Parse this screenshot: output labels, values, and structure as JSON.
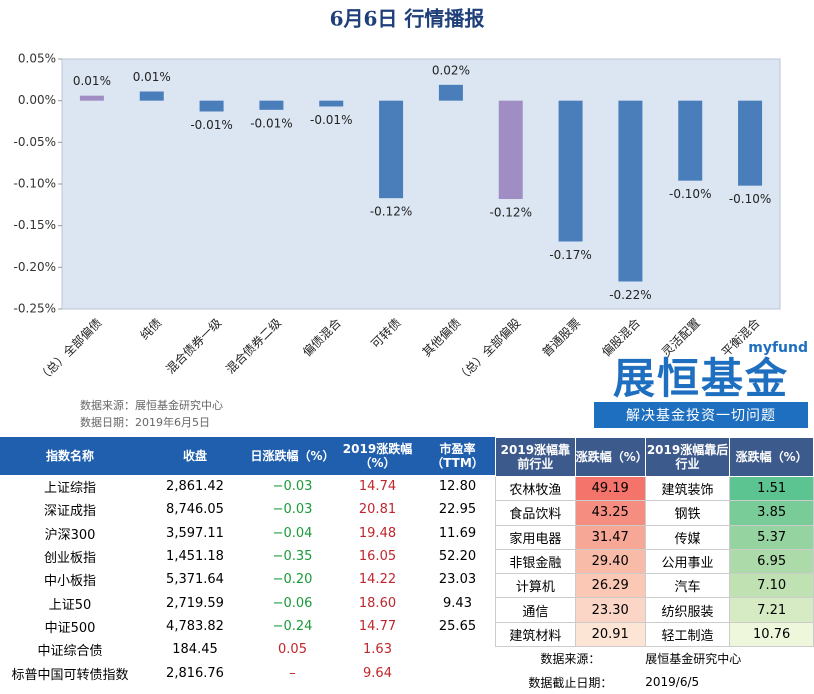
{
  "chart_data": {
    "type": "bar",
    "title": "6月6日  行情播报",
    "categories": [
      "（总）全部偏债",
      "纯债",
      "混合债券一级",
      "混合债券二级",
      "偏债混合",
      "可转债",
      "其他偏债",
      "（总）全部偏股",
      "普通股票",
      "偏股混合",
      "灵活配置",
      "平衡混合"
    ],
    "values": [
      0.006,
      0.011,
      -0.013,
      -0.011,
      -0.007,
      -0.117,
      0.019,
      -0.118,
      -0.169,
      -0.217,
      -0.096,
      -0.102
    ],
    "value_labels": [
      "0.01%",
      "0.01%",
      "-0.01%",
      "-0.01%",
      "-0.01%",
      "-0.12%",
      "0.02%",
      "-0.12%",
      "-0.17%",
      "-0.22%",
      "-0.10%",
      "-0.10%"
    ],
    "colors": [
      "#a08dc4",
      "#4a7ebb",
      "#4a7ebb",
      "#4a7ebb",
      "#4a7ebb",
      "#4a7ebb",
      "#4a7ebb",
      "#a08dc4",
      "#4a7ebb",
      "#4a7ebb",
      "#4a7ebb",
      "#4a7ebb"
    ],
    "ylim": [
      -0.25,
      0.05
    ],
    "yticks": [
      {
        "value": 0.05,
        "label": "0.05%"
      },
      {
        "value": 0,
        "label": "0.00%"
      },
      {
        "value": -0.05,
        "label": "-0.05%"
      },
      {
        "value": -0.1,
        "label": "-0.10%"
      },
      {
        "value": -0.15,
        "label": "-0.15%"
      },
      {
        "value": -0.2,
        "label": "-0.20%"
      },
      {
        "value": -0.25,
        "label": "-0.25%"
      }
    ]
  },
  "source": [
    "数据来源：展恒基金研究中心",
    "数据日期：2019年6月5日"
  ],
  "logo": {
    "brand": "myfund",
    "name": "展恒基金",
    "slogan": "解决基金投资一切问题"
  },
  "table": {
    "header": [
      "指数名称",
      "收盘",
      "日涨跌幅（%）",
      "2019涨跌幅（%）",
      "市盈率（TTM）"
    ],
    "rows": [
      [
        "上证综指",
        "2,861.42",
        "−0.03",
        "14.74",
        "12.80"
      ],
      [
        "深证成指",
        "8,746.05",
        "−0.03",
        "20.81",
        "22.95"
      ],
      [
        "沪深300",
        "3,597.11",
        "−0.04",
        "19.48",
        "11.69"
      ],
      [
        "创业板指",
        "1,451.18",
        "−0.35",
        "16.05",
        "52.20"
      ],
      [
        "中小板指",
        "5,371.64",
        "−0.20",
        "14.22",
        "23.03"
      ],
      [
        "上证50",
        "2,719.59",
        "−0.06",
        "18.60",
        "9.43"
      ],
      [
        "中证500",
        "4,783.82",
        "−0.24",
        "14.77",
        "25.65"
      ],
      [
        "中证综合债",
        "184.45",
        "0.05",
        "1.63"
      ],
      [
        "标普中国可转债指数",
        "2,816.76",
        "–",
        "9.64"
      ]
    ]
  },
  "industry_table": {
    "header": [
      "2019涨幅靠前行业",
      "涨跌幅（%）",
      "2019涨幅靠后行业",
      "涨跌幅（%）"
    ],
    "rows": [
      [
        "农林牧渔",
        "49.19",
        "建筑装饰",
        "1.51"
      ],
      [
        "食品饮料",
        "43.25",
        "钢铁",
        "3.85"
      ],
      [
        "家用电器",
        "31.47",
        "传媒",
        "5.37"
      ],
      [
        "非银金融",
        "29.40",
        "公用事业",
        "6.95"
      ],
      [
        "计算机",
        "26.29",
        "汽车",
        "7.10"
      ],
      [
        "通信",
        "23.30",
        "纺织服装",
        "7.21"
      ],
      [
        "建筑材料",
        "20.91",
        "轻工制造",
        "10.76"
      ]
    ],
    "footer": [
      [
        "数据来源：",
        "展恒基金研究中心"
      ],
      [
        "数据截止日期：",
        "2019/6/5"
      ]
    ]
  }
}
